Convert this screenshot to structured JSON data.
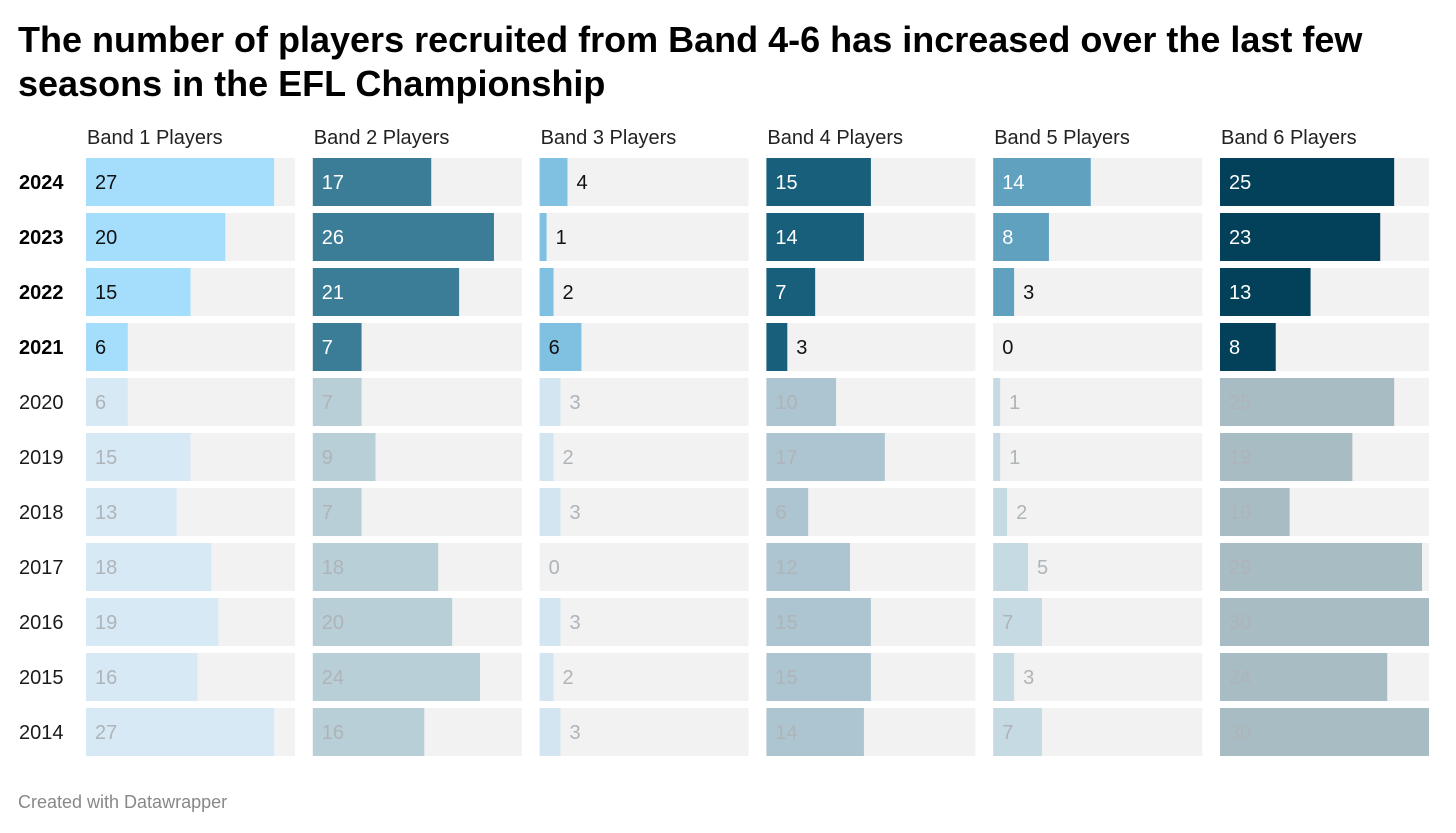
{
  "title": "The number of players recruited from Band 4-6 has increased over the last few seasons in the EFL Championship",
  "credit": "Created with Datawrapper",
  "chart_data": {
    "type": "bar",
    "layout": "small-multiples",
    "categories": [
      "2024",
      "2023",
      "2022",
      "2021",
      "2020",
      "2019",
      "2018",
      "2017",
      "2016",
      "2015",
      "2014"
    ],
    "highlighted": [
      "2024",
      "2023",
      "2022",
      "2021"
    ],
    "xlim": [
      0,
      30
    ],
    "series": [
      {
        "name": "Band 1 Players",
        "color": "#a4defc",
        "muted_color": "#d6e9f5",
        "values": [
          27,
          20,
          15,
          6,
          6,
          15,
          13,
          18,
          19,
          16,
          27
        ]
      },
      {
        "name": "Band 2 Players",
        "color": "#3b7d96",
        "muted_color": "#b9cfd7",
        "values": [
          17,
          26,
          21,
          7,
          7,
          9,
          7,
          18,
          20,
          24,
          16
        ]
      },
      {
        "name": "Band 3 Players",
        "color": "#80c0e0",
        "muted_color": "#d3e5f0",
        "values": [
          4,
          1,
          2,
          6,
          3,
          2,
          3,
          0,
          3,
          2,
          3
        ]
      },
      {
        "name": "Band 4 Players",
        "color": "#175f7a",
        "muted_color": "#adc5d0",
        "values": [
          15,
          14,
          7,
          3,
          10,
          17,
          6,
          12,
          15,
          15,
          14
        ]
      },
      {
        "name": "Band 5 Players",
        "color": "#5fa1bf",
        "muted_color": "#c6dae4",
        "values": [
          14,
          8,
          3,
          0,
          1,
          1,
          2,
          5,
          7,
          3,
          7
        ]
      },
      {
        "name": "Band 6 Players",
        "color": "#03405a",
        "muted_color": "#a8bcc4",
        "values": [
          25,
          23,
          13,
          8,
          25,
          19,
          10,
          29,
          30,
          24,
          30
        ]
      }
    ]
  }
}
